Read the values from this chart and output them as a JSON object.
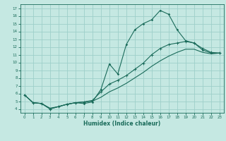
{
  "xlabel": "Humidex (Indice chaleur)",
  "bg_color": "#c5e8e2",
  "grid_color": "#9ecfca",
  "line_color": "#1a6b5a",
  "xlim": [
    -0.5,
    23.5
  ],
  "ylim": [
    3.5,
    17.5
  ],
  "xticks": [
    0,
    1,
    2,
    3,
    4,
    5,
    6,
    7,
    8,
    9,
    10,
    11,
    12,
    13,
    14,
    15,
    16,
    17,
    18,
    19,
    20,
    21,
    22,
    23
  ],
  "yticks": [
    4,
    5,
    6,
    7,
    8,
    9,
    10,
    11,
    12,
    13,
    14,
    15,
    16,
    17
  ],
  "line1_x": [
    0,
    1,
    2,
    3,
    4,
    5,
    6,
    7,
    8,
    9,
    10,
    11,
    12,
    13,
    14,
    15,
    16,
    17,
    18,
    19,
    20,
    21,
    22,
    23
  ],
  "line1_y": [
    5.8,
    4.8,
    4.7,
    4.0,
    4.3,
    4.6,
    4.8,
    4.7,
    4.9,
    6.5,
    9.8,
    8.5,
    12.3,
    14.2,
    15.0,
    15.5,
    16.7,
    16.2,
    14.2,
    12.8,
    12.5,
    11.6,
    11.2,
    11.2
  ],
  "line2_x": [
    0,
    1,
    2,
    3,
    4,
    5,
    6,
    7,
    8,
    9,
    10,
    11,
    12,
    13,
    14,
    15,
    16,
    17,
    18,
    19,
    20,
    21,
    22,
    23
  ],
  "line2_y": [
    5.8,
    4.8,
    4.7,
    4.0,
    4.3,
    4.6,
    4.8,
    4.9,
    5.1,
    6.2,
    7.2,
    7.7,
    8.3,
    9.1,
    9.9,
    11.0,
    11.8,
    12.3,
    12.5,
    12.7,
    12.5,
    11.8,
    11.3,
    11.2
  ],
  "line3_x": [
    0,
    1,
    2,
    3,
    4,
    5,
    6,
    7,
    8,
    9,
    10,
    11,
    12,
    13,
    14,
    15,
    16,
    17,
    18,
    19,
    20,
    21,
    22,
    23
  ],
  "line3_y": [
    5.8,
    4.8,
    4.7,
    4.1,
    4.3,
    4.6,
    4.8,
    4.9,
    5.0,
    5.5,
    6.2,
    6.7,
    7.3,
    8.0,
    8.7,
    9.5,
    10.2,
    10.8,
    11.3,
    11.7,
    11.7,
    11.3,
    11.1,
    11.2
  ]
}
